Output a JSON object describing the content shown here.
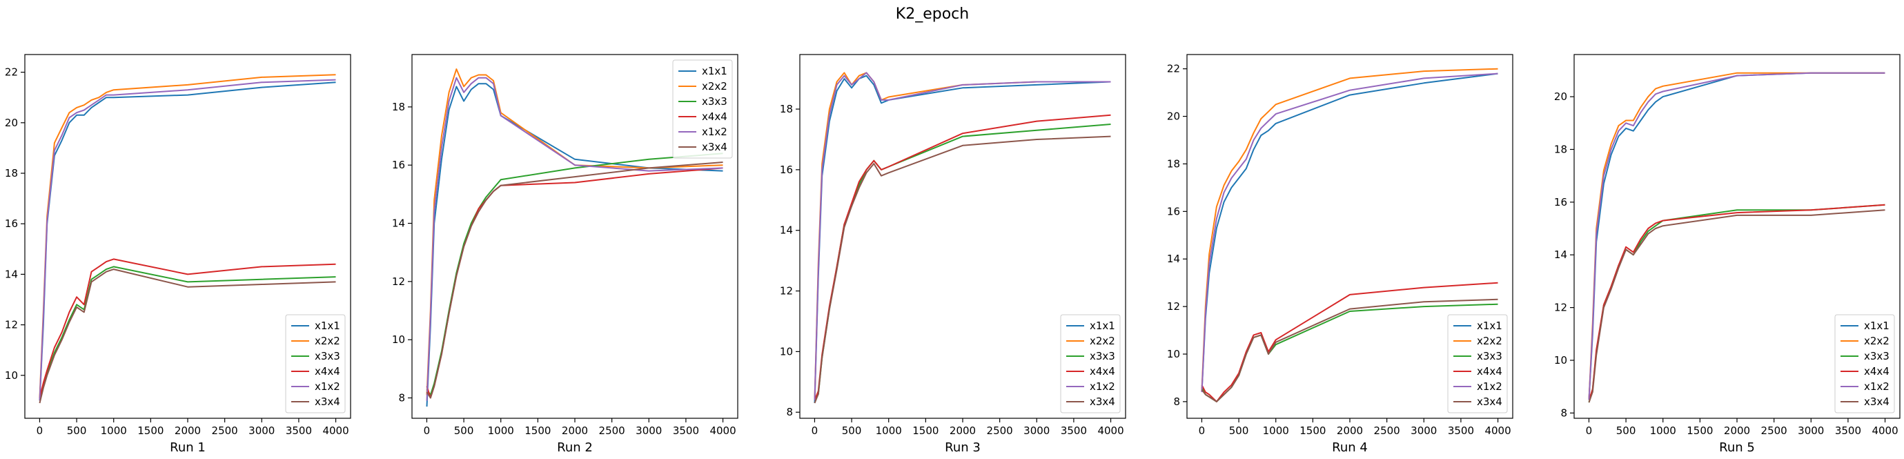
{
  "figure": {
    "title": "K2_epoch"
  },
  "colors": {
    "x1x1": "#1f77b4",
    "x2x2": "#ff7f0e",
    "x3x3": "#2ca02c",
    "x4x4": "#d62728",
    "x1x2": "#9467bd",
    "x3x4": "#8c564b"
  },
  "chart_data": [
    {
      "type": "line",
      "xlabel": "Run 1",
      "legend": "bottom-right",
      "grid": false,
      "xlim": [
        -200,
        4200
      ],
      "ylim": [
        8.3,
        22.7
      ],
      "xticks": [
        0,
        500,
        1000,
        1500,
        2000,
        2500,
        3000,
        3500,
        4000
      ],
      "yticks": [
        10,
        12,
        14,
        16,
        18,
        20,
        22
      ],
      "x": [
        0,
        50,
        100,
        200,
        300,
        400,
        500,
        600,
        700,
        800,
        900,
        1000,
        2000,
        3000,
        4000
      ],
      "series": [
        {
          "name": "x1x1",
          "values": [
            9.0,
            12.0,
            16.0,
            18.7,
            19.3,
            20.0,
            20.3,
            20.3,
            20.6,
            20.8,
            21.0,
            21.0,
            21.1,
            21.4,
            21.6
          ]
        },
        {
          "name": "x2x2",
          "values": [
            9.1,
            12.5,
            16.3,
            19.2,
            19.8,
            20.4,
            20.6,
            20.7,
            20.9,
            21.0,
            21.2,
            21.3,
            21.5,
            21.8,
            21.9
          ]
        },
        {
          "name": "x3x3",
          "values": [
            9.0,
            9.6,
            10.1,
            10.9,
            11.5,
            12.2,
            12.8,
            12.6,
            13.8,
            14.0,
            14.2,
            14.3,
            13.7,
            13.8,
            13.9
          ]
        },
        {
          "name": "x4x4",
          "values": [
            9.1,
            9.7,
            10.2,
            11.1,
            11.7,
            12.5,
            13.1,
            12.8,
            14.1,
            14.3,
            14.5,
            14.6,
            14.0,
            14.3,
            14.4
          ]
        },
        {
          "name": "x1x2",
          "values": [
            9.0,
            12.3,
            16.1,
            18.9,
            19.5,
            20.2,
            20.4,
            20.5,
            20.7,
            20.9,
            21.1,
            21.1,
            21.3,
            21.6,
            21.7
          ]
        },
        {
          "name": "x3x4",
          "values": [
            8.9,
            9.5,
            10.0,
            10.8,
            11.4,
            12.1,
            12.7,
            12.5,
            13.7,
            13.9,
            14.1,
            14.2,
            13.5,
            13.6,
            13.7
          ]
        }
      ]
    },
    {
      "type": "line",
      "xlabel": "Run 2",
      "legend": "top-right",
      "grid": false,
      "xlim": [
        -200,
        4200
      ],
      "ylim": [
        7.3,
        19.8
      ],
      "xticks": [
        0,
        500,
        1000,
        1500,
        2000,
        2500,
        3000,
        3500,
        4000
      ],
      "yticks": [
        8,
        10,
        12,
        14,
        16,
        18
      ],
      "x": [
        0,
        50,
        100,
        200,
        300,
        400,
        500,
        600,
        700,
        800,
        900,
        1000,
        2000,
        3000,
        4000
      ],
      "series": [
        {
          "name": "x1x1",
          "values": [
            7.7,
            10.5,
            14.0,
            16.2,
            17.9,
            18.7,
            18.2,
            18.6,
            18.8,
            18.8,
            18.6,
            17.7,
            16.2,
            15.9,
            15.8
          ]
        },
        {
          "name": "x2x2",
          "values": [
            8.1,
            11.0,
            14.8,
            17.0,
            18.5,
            19.3,
            18.7,
            19.0,
            19.1,
            19.1,
            18.9,
            17.8,
            16.0,
            15.9,
            16.0
          ]
        },
        {
          "name": "x3x3",
          "values": [
            8.3,
            8.1,
            8.5,
            9.6,
            11.0,
            12.3,
            13.3,
            14.0,
            14.5,
            14.9,
            15.2,
            15.5,
            15.9,
            16.2,
            16.4
          ]
        },
        {
          "name": "x4x4",
          "values": [
            8.4,
            8.0,
            8.4,
            9.5,
            10.9,
            12.2,
            13.2,
            13.9,
            14.5,
            14.8,
            15.1,
            15.3,
            15.4,
            15.7,
            15.9
          ]
        },
        {
          "name": "x1x2",
          "values": [
            7.9,
            10.8,
            14.4,
            16.6,
            18.2,
            19.0,
            18.5,
            18.8,
            19.0,
            19.0,
            18.8,
            17.7,
            16.0,
            15.8,
            15.9
          ]
        },
        {
          "name": "x3x4",
          "values": [
            8.2,
            8.0,
            8.4,
            9.5,
            10.9,
            12.2,
            13.2,
            13.9,
            14.4,
            14.8,
            15.1,
            15.3,
            15.6,
            15.9,
            16.1
          ]
        }
      ]
    },
    {
      "type": "line",
      "xlabel": "Run 3",
      "legend": "bottom-right",
      "grid": false,
      "xlim": [
        -200,
        4200
      ],
      "ylim": [
        7.8,
        19.8
      ],
      "xticks": [
        0,
        500,
        1000,
        1500,
        2000,
        2500,
        3000,
        3500,
        4000
      ],
      "yticks": [
        8,
        10,
        12,
        14,
        16,
        18
      ],
      "x": [
        0,
        50,
        100,
        200,
        300,
        400,
        500,
        600,
        700,
        800,
        900,
        1000,
        2000,
        3000,
        4000
      ],
      "series": [
        {
          "name": "x1x1",
          "values": [
            8.3,
            12.5,
            15.8,
            17.6,
            18.6,
            19.0,
            18.7,
            19.0,
            19.1,
            18.8,
            18.2,
            18.3,
            18.7,
            18.8,
            18.9
          ]
        },
        {
          "name": "x2x2",
          "values": [
            8.4,
            12.9,
            16.2,
            18.0,
            18.9,
            19.2,
            18.8,
            19.1,
            19.2,
            18.9,
            18.3,
            18.4,
            18.8,
            18.9,
            18.9
          ]
        },
        {
          "name": "x3x3",
          "values": [
            8.4,
            8.6,
            9.8,
            11.4,
            12.8,
            14.2,
            14.8,
            15.5,
            16.0,
            16.3,
            16.0,
            16.1,
            17.1,
            17.3,
            17.5
          ]
        },
        {
          "name": "x4x4",
          "values": [
            8.4,
            8.7,
            9.9,
            11.5,
            12.8,
            14.2,
            14.9,
            15.6,
            16.0,
            16.3,
            16.0,
            16.1,
            17.2,
            17.6,
            17.8
          ]
        },
        {
          "name": "x1x2",
          "values": [
            8.4,
            12.7,
            16.0,
            17.8,
            18.8,
            19.1,
            18.8,
            19.0,
            19.2,
            18.9,
            18.3,
            18.3,
            18.8,
            18.9,
            18.9
          ]
        },
        {
          "name": "x3x4",
          "values": [
            8.3,
            8.6,
            9.8,
            11.4,
            12.7,
            14.1,
            14.8,
            15.4,
            15.9,
            16.2,
            15.8,
            15.9,
            16.8,
            17.0,
            17.1
          ]
        }
      ]
    },
    {
      "type": "line",
      "xlabel": "Run 4",
      "legend": "bottom-right",
      "grid": false,
      "xlim": [
        -200,
        4200
      ],
      "ylim": [
        7.3,
        22.6
      ],
      "xticks": [
        0,
        500,
        1000,
        1500,
        2000,
        2500,
        3000,
        3500,
        4000
      ],
      "yticks": [
        8,
        10,
        12,
        14,
        16,
        18,
        20,
        22
      ],
      "x": [
        0,
        50,
        100,
        200,
        300,
        400,
        500,
        600,
        700,
        800,
        900,
        1000,
        2000,
        3000,
        4000
      ],
      "series": [
        {
          "name": "x1x1",
          "values": [
            8.4,
            11.5,
            13.4,
            15.3,
            16.4,
            17.0,
            17.4,
            17.8,
            18.6,
            19.2,
            19.4,
            19.7,
            20.9,
            21.4,
            21.8
          ]
        },
        {
          "name": "x2x2",
          "values": [
            8.5,
            12.0,
            14.2,
            16.2,
            17.1,
            17.7,
            18.1,
            18.6,
            19.3,
            19.9,
            20.2,
            20.5,
            21.6,
            21.9,
            22.0
          ]
        },
        {
          "name": "x3x3",
          "values": [
            8.6,
            8.3,
            8.2,
            8.0,
            8.3,
            8.6,
            9.1,
            10.0,
            10.7,
            10.8,
            10.0,
            10.4,
            11.8,
            12.0,
            12.1
          ]
        },
        {
          "name": "x4x4",
          "values": [
            8.7,
            8.4,
            8.3,
            8.0,
            8.4,
            8.7,
            9.2,
            10.1,
            10.8,
            10.9,
            10.1,
            10.6,
            12.5,
            12.8,
            13.0
          ]
        },
        {
          "name": "x1x2",
          "values": [
            8.4,
            11.7,
            13.8,
            15.7,
            16.8,
            17.4,
            17.8,
            18.2,
            19.0,
            19.5,
            19.8,
            20.1,
            21.1,
            21.6,
            21.8
          ]
        },
        {
          "name": "x3x4",
          "values": [
            8.5,
            8.3,
            8.2,
            8.0,
            8.3,
            8.6,
            9.1,
            10.0,
            10.7,
            10.8,
            10.0,
            10.5,
            11.9,
            12.2,
            12.3
          ]
        }
      ]
    },
    {
      "type": "line",
      "xlabel": "Run 5",
      "legend": "bottom-right",
      "grid": false,
      "xlim": [
        -200,
        4200
      ],
      "ylim": [
        7.8,
        21.6
      ],
      "xticks": [
        0,
        500,
        1000,
        1500,
        2000,
        2500,
        3000,
        3500,
        4000
      ],
      "yticks": [
        8,
        10,
        12,
        14,
        16,
        18,
        20
      ],
      "x": [
        0,
        50,
        100,
        200,
        300,
        400,
        500,
        600,
        700,
        800,
        900,
        1000,
        2000,
        3000,
        4000
      ],
      "series": [
        {
          "name": "x1x1",
          "values": [
            8.5,
            11.0,
            14.5,
            16.7,
            17.8,
            18.5,
            18.8,
            18.7,
            19.1,
            19.5,
            19.8,
            20.0,
            20.8,
            20.9,
            20.9
          ]
        },
        {
          "name": "x2x2",
          "values": [
            8.5,
            11.4,
            15.0,
            17.2,
            18.2,
            18.9,
            19.1,
            19.1,
            19.6,
            20.0,
            20.3,
            20.4,
            20.9,
            20.9,
            20.9
          ]
        },
        {
          "name": "x3x3",
          "values": [
            8.4,
            8.9,
            10.3,
            12.1,
            12.8,
            13.6,
            14.2,
            14.0,
            14.5,
            14.9,
            15.1,
            15.3,
            15.7,
            15.7,
            15.9
          ]
        },
        {
          "name": "x4x4",
          "values": [
            8.5,
            8.9,
            10.4,
            12.1,
            12.8,
            13.6,
            14.3,
            14.1,
            14.6,
            15.0,
            15.2,
            15.3,
            15.6,
            15.7,
            15.9
          ]
        },
        {
          "name": "x1x2",
          "values": [
            8.5,
            11.2,
            14.8,
            17.0,
            18.0,
            18.7,
            19.0,
            18.9,
            19.4,
            19.8,
            20.1,
            20.2,
            20.8,
            20.9,
            20.9
          ]
        },
        {
          "name": "x3x4",
          "values": [
            8.4,
            8.8,
            10.2,
            12.0,
            12.7,
            13.5,
            14.2,
            14.0,
            14.4,
            14.8,
            15.0,
            15.1,
            15.5,
            15.5,
            15.7
          ]
        }
      ]
    }
  ]
}
